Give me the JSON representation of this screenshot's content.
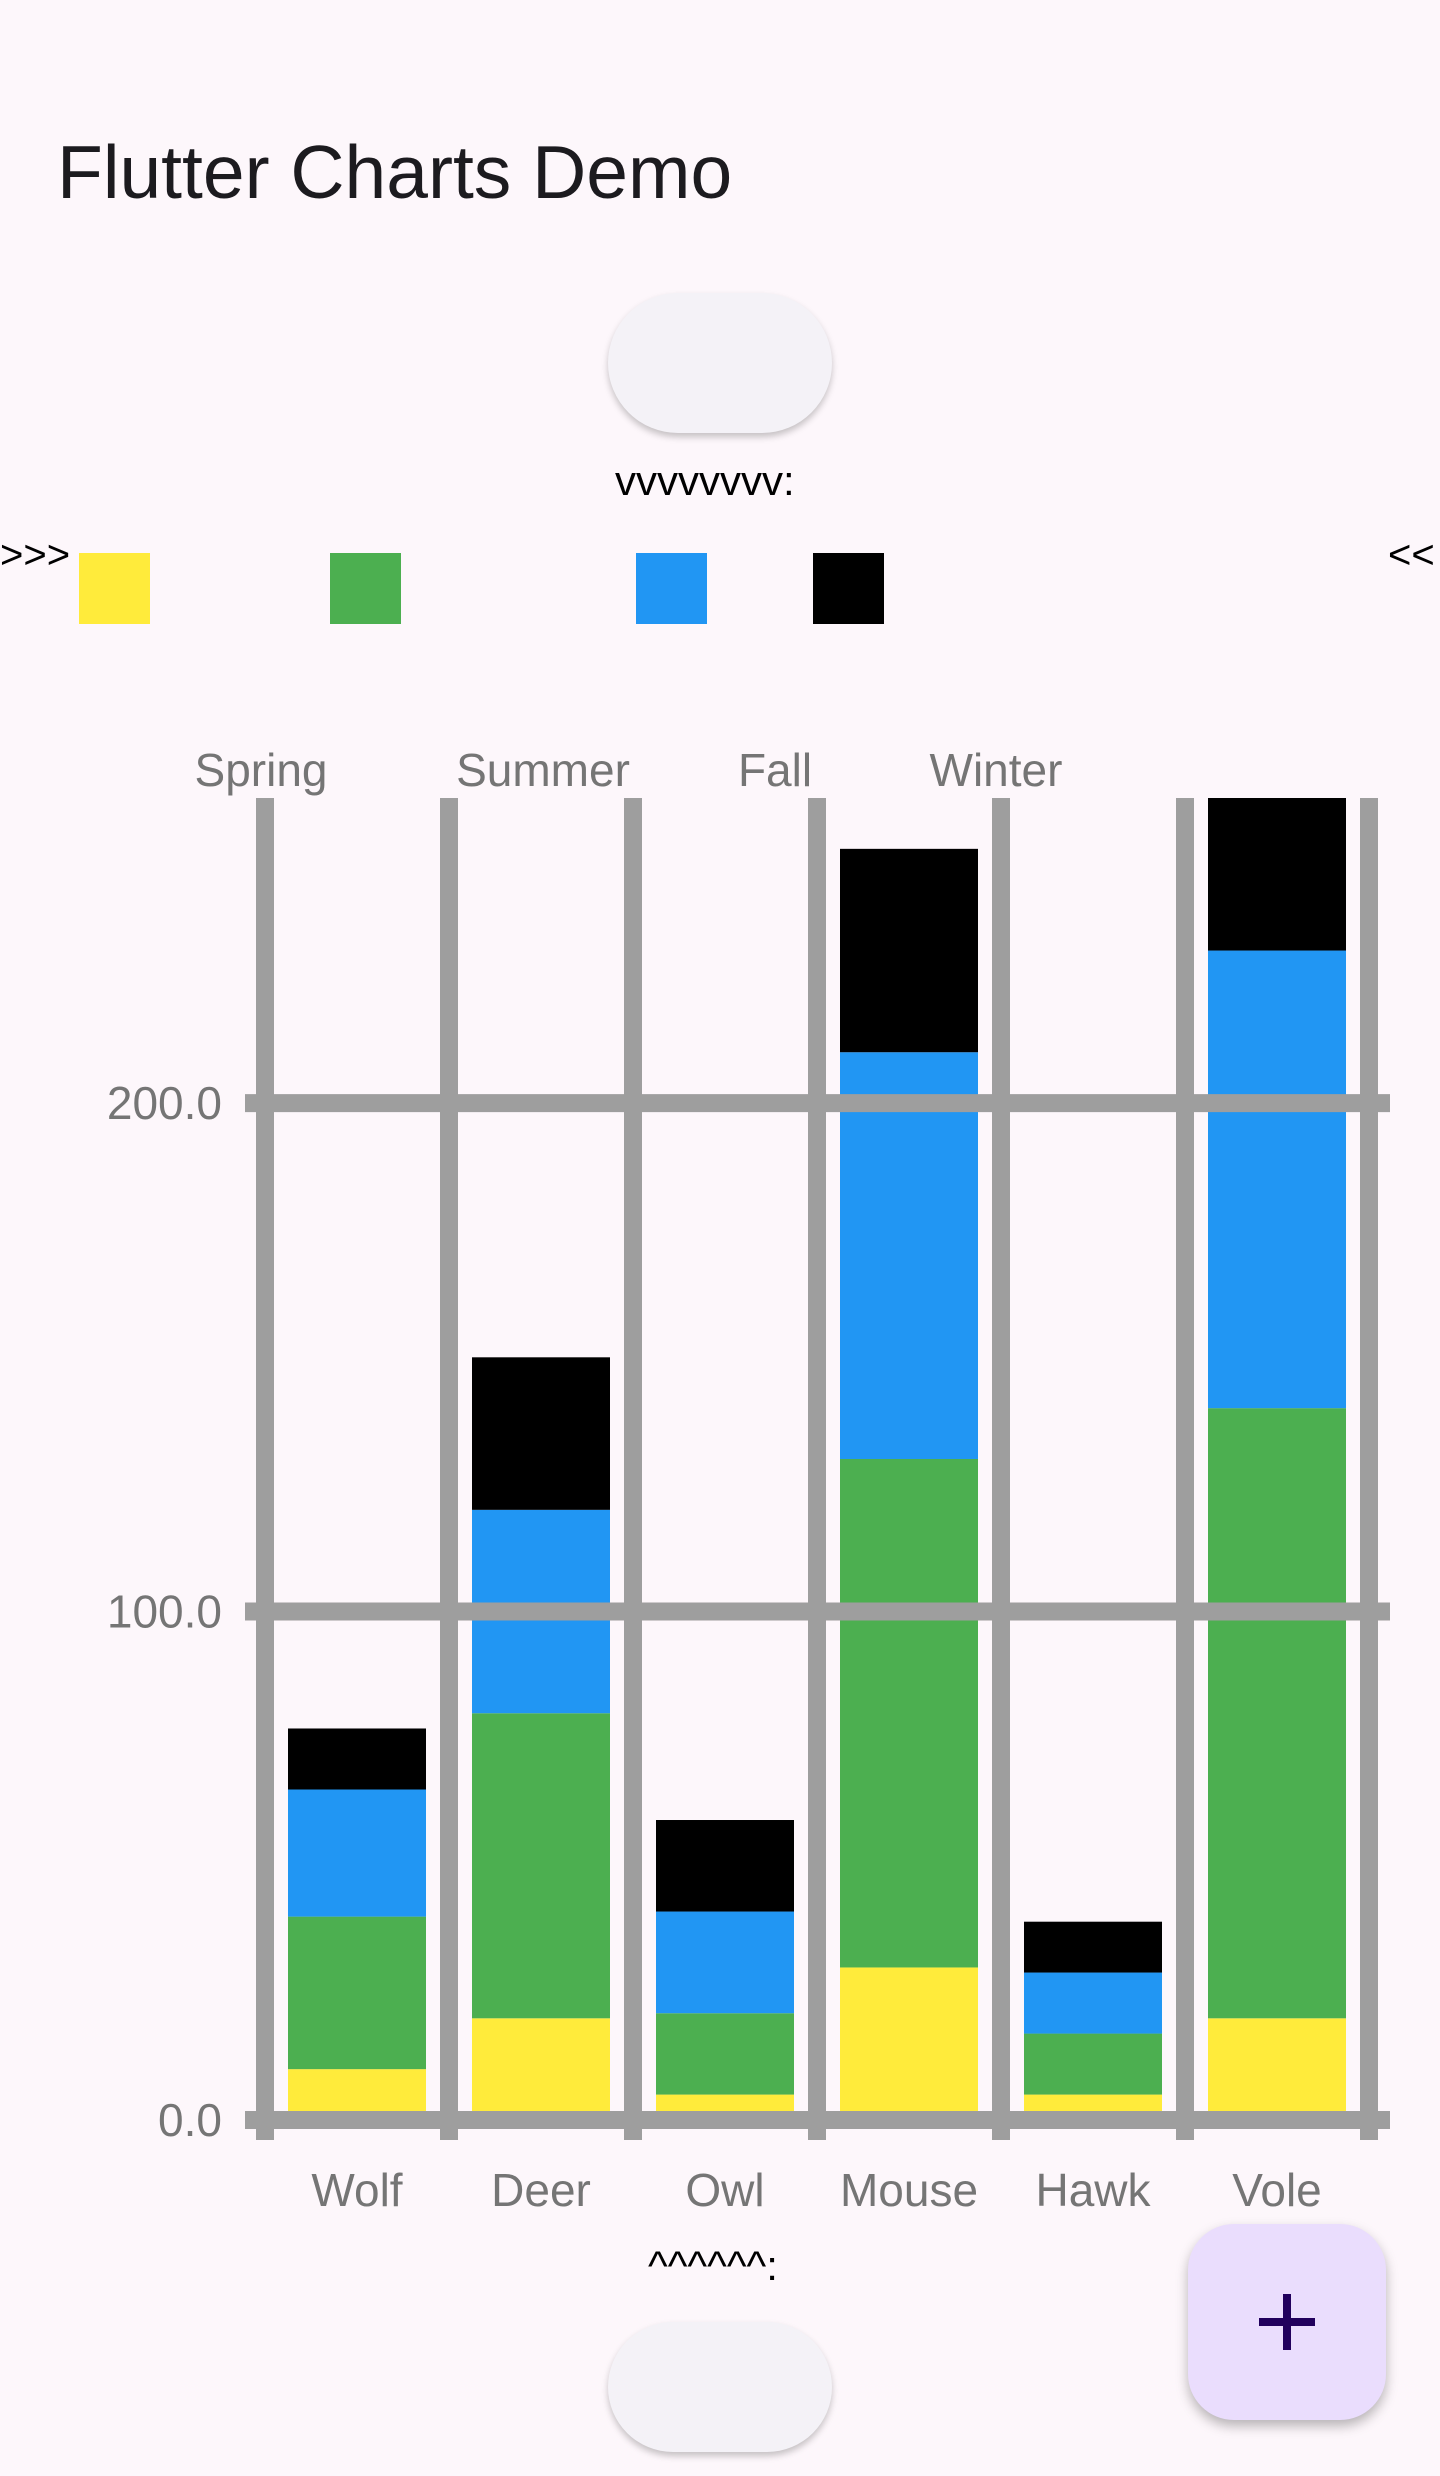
{
  "app": {
    "title": "Flutter Charts Demo"
  },
  "markers": {
    "top": "vvvvvvvv:",
    "bottom": "^^^^^^:",
    "legend_left": ">>>",
    "legend_right": "<<"
  },
  "fab": {
    "icon": "plus-icon"
  },
  "chart_data": {
    "type": "bar",
    "stacked": true,
    "categories": [
      "Wolf",
      "Deer",
      "Owl",
      "Mouse",
      "Hawk",
      "Vole"
    ],
    "series": [
      {
        "name": "Spring",
        "color": "#ffeb3b",
        "values": [
          10,
          20,
          5,
          30,
          5,
          20
        ]
      },
      {
        "name": "Summer",
        "color": "#4caf50",
        "values": [
          30,
          60,
          16,
          100,
          12,
          120
        ]
      },
      {
        "name": "Fall",
        "color": "#2196f3",
        "values": [
          25,
          40,
          20,
          80,
          12,
          90
        ]
      },
      {
        "name": "Winter",
        "color": "#000000",
        "values": [
          12,
          30,
          18,
          40,
          10,
          30
        ]
      }
    ],
    "y_ticks": [
      "0.0",
      "100.0",
      "200.0"
    ],
    "ylim": [
      0,
      260
    ],
    "grid": true,
    "legend_position": "top",
    "title": "",
    "xlabel": "",
    "ylabel": ""
  }
}
